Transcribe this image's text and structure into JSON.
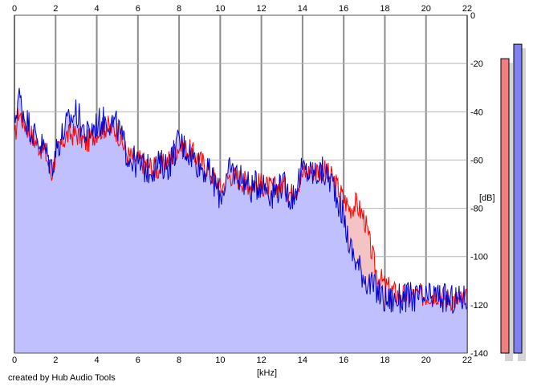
{
  "chart_data": {
    "type": "area",
    "xlabel": "[kHz]",
    "ylabel": "[dB]",
    "xlim": [
      0,
      22
    ],
    "ylim": [
      -140,
      0
    ],
    "x_ticks": [
      "0",
      "2",
      "4",
      "6",
      "8",
      "10",
      "12",
      "14",
      "16",
      "18",
      "20",
      "22"
    ],
    "y_ticks": [
      "0",
      "-20",
      "-40",
      "-60",
      "-80",
      "-100",
      "-120",
      "-140"
    ],
    "grid": true,
    "series": [
      {
        "color": "#ff0000",
        "fill": "#f4c4c4",
        "x": [
          0,
          0.2,
          0.5,
          1.0,
          1.5,
          1.8,
          2.0,
          2.5,
          3.0,
          3.5,
          4.0,
          4.5,
          5.0,
          5.5,
          6.0,
          6.5,
          7.0,
          7.5,
          8.0,
          8.5,
          9.0,
          9.5,
          10.0,
          10.5,
          11.0,
          11.5,
          12.0,
          12.5,
          13.0,
          13.5,
          14.0,
          14.5,
          15.0,
          15.5,
          16.0,
          16.3,
          16.6,
          17.0,
          17.3,
          17.6,
          18.0,
          18.5,
          19.0,
          19.5,
          20.0,
          20.5,
          21.0,
          21.5,
          22.0
        ],
        "y": [
          -52,
          -40,
          -45,
          -52,
          -57,
          -66,
          -58,
          -50,
          -49,
          -53,
          -48,
          -46,
          -48,
          -58,
          -60,
          -62,
          -64,
          -60,
          -54,
          -56,
          -60,
          -64,
          -72,
          -66,
          -68,
          -70,
          -70,
          -72,
          -70,
          -74,
          -66,
          -64,
          -64,
          -68,
          -76,
          -80,
          -78,
          -84,
          -96,
          -107,
          -112,
          -115,
          -116,
          -116,
          -116,
          -115,
          -117,
          -118,
          -118
        ]
      },
      {
        "color": "#0000cc",
        "fill": "#c0c0ff",
        "x": [
          0,
          0.2,
          0.5,
          1.0,
          1.5,
          1.8,
          2.0,
          2.5,
          3.0,
          3.5,
          4.0,
          4.5,
          5.0,
          5.5,
          6.0,
          6.5,
          7.0,
          7.5,
          8.0,
          8.5,
          9.0,
          9.5,
          10.0,
          10.5,
          11.0,
          11.5,
          12.0,
          12.5,
          13.0,
          13.5,
          14.0,
          14.5,
          15.0,
          15.5,
          16.0,
          16.3,
          16.6,
          17.0,
          17.3,
          17.6,
          18.0,
          18.5,
          19.0,
          19.5,
          20.0,
          20.5,
          21.0,
          21.5,
          22.0
        ],
        "y": [
          -45,
          -33,
          -42,
          -50,
          -56,
          -63,
          -56,
          -46,
          -40,
          -50,
          -45,
          -43,
          -46,
          -58,
          -62,
          -64,
          -62,
          -62,
          -52,
          -57,
          -62,
          -66,
          -75,
          -64,
          -67,
          -72,
          -69,
          -74,
          -70,
          -76,
          -64,
          -66,
          -65,
          -70,
          -84,
          -96,
          -102,
          -108,
          -112,
          -114,
          -118,
          -118,
          -117,
          -117,
          -118,
          -116,
          -118,
          -118,
          -117
        ]
      }
    ],
    "level_meters": [
      {
        "color": "#f08080",
        "level_db": -18
      },
      {
        "color": "#8080f0",
        "level_db": -12
      }
    ]
  },
  "footer": {
    "credit": "created by Hub Audio Tools"
  }
}
